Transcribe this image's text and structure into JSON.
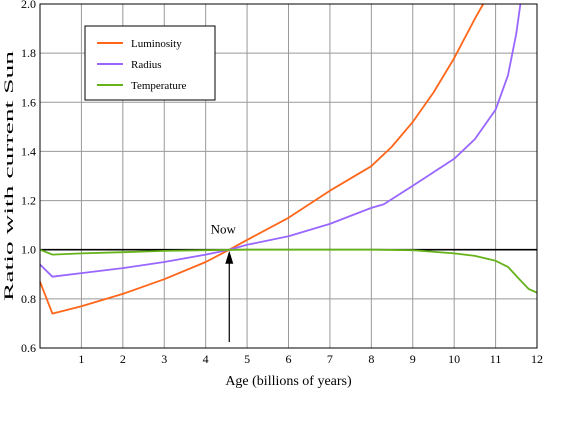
{
  "chart_data": {
    "type": "line",
    "xlabel": "Age (billions of years)",
    "ylabel": "Ratio with current Sun",
    "xlim": [
      0,
      12
    ],
    "ylim": [
      0.6,
      2.0
    ],
    "x_ticks": [
      "1",
      "2",
      "3",
      "4",
      "5",
      "6",
      "7",
      "8",
      "9",
      "10",
      "11",
      "12"
    ],
    "y_ticks": [
      "0.6",
      "0.8",
      "1.0",
      "1.2",
      "1.4",
      "1.6",
      "1.8",
      "2.0"
    ],
    "grid": true,
    "reference_line": 1.0,
    "annotation": {
      "text": "Now",
      "x": 4.57
    },
    "legend": {
      "placement": "top-left"
    },
    "series": [
      {
        "name": "Luminosity",
        "color": "#ff6619",
        "points": [
          [
            0,
            0.87
          ],
          [
            0.3,
            0.74
          ],
          [
            1,
            0.77
          ],
          [
            2,
            0.82
          ],
          [
            3,
            0.88
          ],
          [
            4,
            0.95
          ],
          [
            4.57,
            1.0
          ],
          [
            5,
            1.04
          ],
          [
            6,
            1.13
          ],
          [
            7,
            1.24
          ],
          [
            8,
            1.34
          ],
          [
            8.5,
            1.42
          ],
          [
            9,
            1.52
          ],
          [
            9.5,
            1.64
          ],
          [
            10,
            1.78
          ],
          [
            10.5,
            1.94
          ],
          [
            10.7,
            2.0
          ]
        ]
      },
      {
        "name": "Radius",
        "color": "#9966ff",
        "points": [
          [
            0,
            0.94
          ],
          [
            0.3,
            0.89
          ],
          [
            1,
            0.905
          ],
          [
            2,
            0.925
          ],
          [
            3,
            0.95
          ],
          [
            4,
            0.98
          ],
          [
            4.57,
            1.0
          ],
          [
            5,
            1.02
          ],
          [
            6,
            1.055
          ],
          [
            7,
            1.105
          ],
          [
            8,
            1.17
          ],
          [
            8.3,
            1.185
          ],
          [
            9,
            1.26
          ],
          [
            10,
            1.37
          ],
          [
            10.5,
            1.45
          ],
          [
            11,
            1.57
          ],
          [
            11.3,
            1.71
          ],
          [
            11.5,
            1.88
          ],
          [
            11.6,
            2.0
          ]
        ]
      },
      {
        "name": "Temperature",
        "color": "#66b21a",
        "points": [
          [
            0,
            1.0
          ],
          [
            0.3,
            0.98
          ],
          [
            1,
            0.985
          ],
          [
            2,
            0.99
          ],
          [
            3,
            0.995
          ],
          [
            4,
            0.998
          ],
          [
            5,
            1.0
          ],
          [
            6,
            1.0
          ],
          [
            7,
            1.0
          ],
          [
            8,
            1.0
          ],
          [
            9,
            0.998
          ],
          [
            10,
            0.985
          ],
          [
            10.5,
            0.975
          ],
          [
            11,
            0.955
          ],
          [
            11.3,
            0.93
          ],
          [
            11.6,
            0.875
          ],
          [
            11.8,
            0.84
          ],
          [
            12,
            0.825
          ]
        ]
      }
    ]
  }
}
